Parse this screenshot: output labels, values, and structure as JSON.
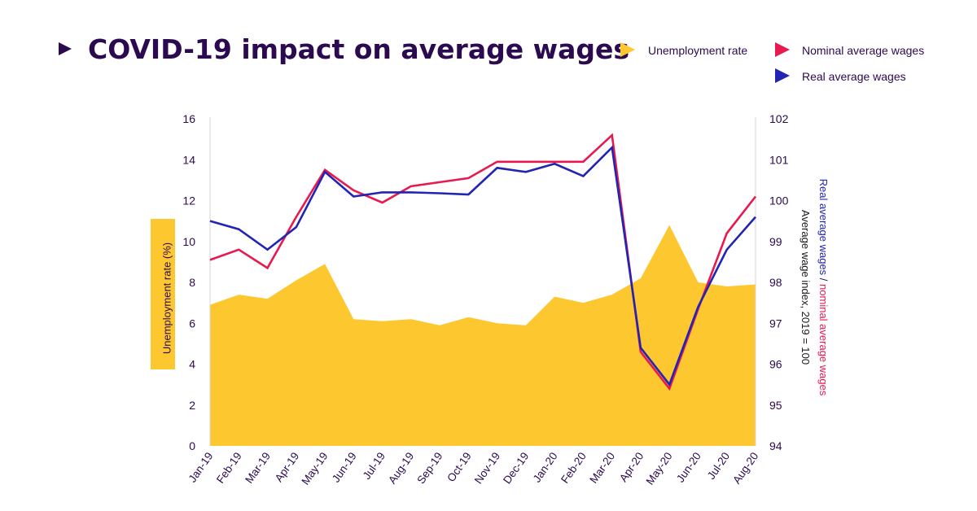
{
  "title": "COVID-19 impact on average wages",
  "colors": {
    "title": "#2b0a4f",
    "axis_text": "#2b0a4f",
    "unemployment": "#fdc82f",
    "nominal": "#e8194f",
    "real": "#2224b3",
    "axis_line": "#d6d6d6"
  },
  "legend": {
    "unemployment": "Unemployment rate",
    "nominal": "Nominal average wages",
    "real": "Real average wages"
  },
  "axis_labels": {
    "left": "Unemployment rate (%)",
    "right_line1_part_real": "Real average wages",
    "right_line1_separator": " / ",
    "right_line1_part_nominal": "nominal average wages",
    "right_line2": "Average wage index, 2019 = 100"
  },
  "chart_data": {
    "type": "area+line",
    "title": "COVID-19 impact on average wages",
    "categories": [
      "Jan-19",
      "Feb-19",
      "Mar-19",
      "Apr-19",
      "May-19",
      "Jun-19",
      "Jul-19",
      "Aug-19",
      "Sep-19",
      "Oct-19",
      "Nov-19",
      "Dec-19",
      "Jan-20",
      "Feb-20",
      "Mar-20",
      "Apr-20",
      "May-20",
      "Jun-20",
      "Jul-20",
      "Aug-20"
    ],
    "y_left": {
      "label": "Unemployment rate (%)",
      "min": 0,
      "max": 16,
      "ticks": [
        0,
        2,
        4,
        6,
        8,
        10,
        12,
        14,
        16
      ]
    },
    "y_right": {
      "label": "Average wage index, 2019 = 100",
      "min": 94,
      "max": 102,
      "ticks": [
        94,
        95,
        96,
        97,
        98,
        99,
        100,
        101,
        102
      ]
    },
    "series": [
      {
        "name": "Unemployment rate",
        "type": "area",
        "axis": "left",
        "values": [
          6.9,
          7.4,
          7.2,
          8.1,
          8.9,
          6.2,
          6.1,
          6.2,
          5.9,
          6.3,
          6.0,
          5.9,
          7.3,
          7.0,
          7.4,
          8.2,
          10.8,
          8.0,
          7.8,
          7.9
        ]
      },
      {
        "name": "Nominal average wages",
        "type": "line",
        "axis": "right",
        "values": [
          98.55,
          98.8,
          98.35,
          99.6,
          100.75,
          100.25,
          99.95,
          100.35,
          100.45,
          100.55,
          100.95,
          100.95,
          100.95,
          100.95,
          101.6,
          96.3,
          95.4,
          97.35,
          99.2,
          100.1
        ]
      },
      {
        "name": "Real average wages",
        "type": "line",
        "axis": "right",
        "values": [
          99.5,
          99.3,
          98.8,
          99.35,
          100.7,
          100.1,
          100.2,
          100.2,
          100.18,
          100.15,
          100.8,
          100.7,
          100.9,
          100.6,
          101.3,
          96.4,
          95.5,
          97.4,
          98.8,
          99.6
        ]
      }
    ]
  }
}
